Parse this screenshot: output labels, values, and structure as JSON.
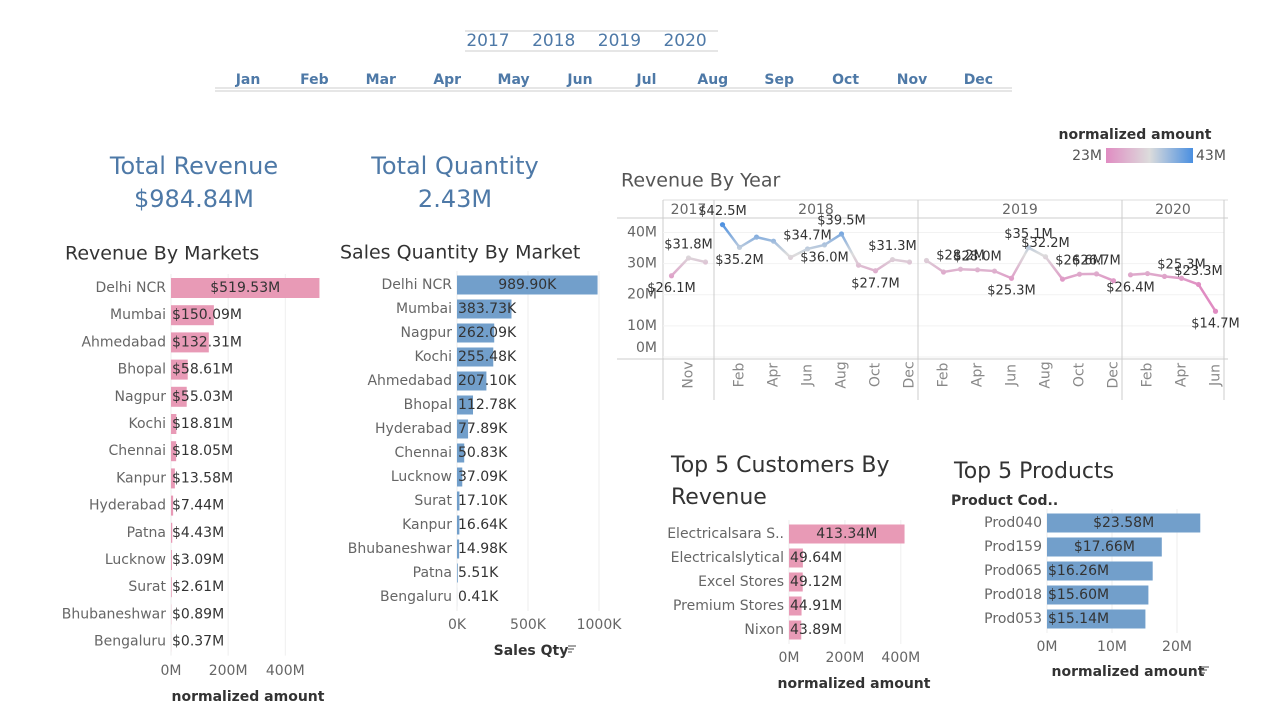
{
  "filters": {
    "years": [
      "2017",
      "2018",
      "2019",
      "2020"
    ],
    "months": [
      "Jan",
      "Feb",
      "Mar",
      "Apr",
      "May",
      "Jun",
      "Jul",
      "Aug",
      "Sep",
      "Oct",
      "Nov",
      "Dec"
    ]
  },
  "kpis": [
    {
      "label": "Total Revenue",
      "value": "$984.84M"
    },
    {
      "label": "Total Quantity",
      "value": "2.43M"
    }
  ],
  "chart_data": [
    {
      "type": "hbar",
      "title": "Revenue By Markets",
      "color": "#e89ab6",
      "categories": [
        "Delhi NCR",
        "Mumbai",
        "Ahmedabad",
        "Bhopal",
        "Nagpur",
        "Kochi",
        "Chennai",
        "Kanpur",
        "Hyderabad",
        "Patna",
        "Lucknow",
        "Surat",
        "Bhubaneshwar",
        "Bengaluru"
      ],
      "values": [
        519.53,
        150.09,
        132.31,
        58.61,
        55.03,
        18.81,
        18.05,
        13.58,
        7.44,
        4.43,
        3.09,
        2.61,
        0.89,
        0.37
      ],
      "value_labels": [
        "$519.53M",
        "$150.09M",
        "$132.31M",
        "$58.61M",
        "$55.03M",
        "$18.81M",
        "$18.05M",
        "$13.58M",
        "$7.44M",
        "$4.43M",
        "$3.09M",
        "$2.61M",
        "$0.89M",
        "$0.37M"
      ],
      "xlim": [
        0,
        560
      ],
      "xticks": [
        {
          "value": 0,
          "label": "0M"
        },
        {
          "value": 200,
          "label": "200M"
        },
        {
          "value": 400,
          "label": "400M"
        }
      ],
      "x_label": "normalized amount"
    },
    {
      "type": "hbar",
      "title": "Sales Quantity By Market",
      "color": "#729fcb",
      "categories": [
        "Delhi NCR",
        "Mumbai",
        "Nagpur",
        "Kochi",
        "Ahmedabad",
        "Bhopal",
        "Hyderabad",
        "Chennai",
        "Lucknow",
        "Surat",
        "Kanpur",
        "Bhubaneshwar",
        "Patna",
        "Bengaluru"
      ],
      "values": [
        989.9,
        383.73,
        262.09,
        255.48,
        207.1,
        112.78,
        77.89,
        50.83,
        37.09,
        17.1,
        16.64,
        14.98,
        5.51,
        0.41
      ],
      "value_labels": [
        "989.90K",
        "383.73K",
        "262.09K",
        "255.48K",
        "207.10K",
        "112.78K",
        "77.89K",
        "50.83K",
        "37.09K",
        "17.10K",
        "16.64K",
        "14.98K",
        "5.51K",
        "0.41K"
      ],
      "xlim": [
        0,
        1000
      ],
      "xticks": [
        {
          "value": 0,
          "label": "0K"
        },
        {
          "value": 500,
          "label": "500K"
        },
        {
          "value": 1000,
          "label": "1000K"
        }
      ],
      "x_label": "Sales Qty"
    },
    {
      "type": "line",
      "title": "Revenue By Year",
      "ylim": [
        0,
        44
      ],
      "yticks": [
        {
          "value": 0,
          "label": "0M"
        },
        {
          "value": 10,
          "label": "10M"
        },
        {
          "value": 20,
          "label": "20M"
        },
        {
          "value": 30,
          "label": "30M"
        },
        {
          "value": 40,
          "label": "40M"
        }
      ],
      "panels": [
        {
          "label": "2017",
          "categories": [
            null,
            "Nov",
            null
          ],
          "values": [
            26.1,
            31.8,
            30.5
          ],
          "value_labels": [
            "$26.1M",
            "$31.8M",
            null
          ]
        },
        {
          "label": "2018",
          "categories": [
            null,
            "Feb",
            null,
            "Apr",
            null,
            "Jun",
            null,
            "Aug",
            null,
            "Oct",
            null,
            "Dec"
          ],
          "values": [
            42.5,
            35.2,
            38.5,
            37.2,
            32.0,
            34.7,
            36.0,
            39.5,
            29.5,
            27.7,
            31.3,
            30.5
          ],
          "value_labels": [
            "$42.5M",
            "$35.2M",
            null,
            null,
            null,
            "$34.7M",
            "$36.0M",
            "$39.5M",
            null,
            "$27.7M",
            "$31.3M",
            null
          ]
        },
        {
          "label": "2019",
          "categories": [
            null,
            "Feb",
            null,
            "Apr",
            null,
            "Jun",
            null,
            "Aug",
            null,
            "Oct",
            null,
            "Dec"
          ],
          "values": [
            31.0,
            27.3,
            28.2,
            28.0,
            27.6,
            25.3,
            35.1,
            32.2,
            25.0,
            26.6,
            26.7,
            24.5
          ],
          "value_labels": [
            null,
            null,
            "$28.2M",
            "$28.0M",
            null,
            "$25.3M",
            "$35.1M",
            "$32.2M",
            null,
            "$26.6M",
            "$26.7M",
            null
          ]
        },
        {
          "label": "2020",
          "categories": [
            null,
            "Feb",
            null,
            "Apr",
            null,
            "Jun"
          ],
          "values": [
            26.4,
            26.8,
            25.9,
            25.3,
            23.3,
            14.7
          ],
          "value_labels": [
            "$26.4M",
            null,
            null,
            "$25.3M",
            "$23.3M",
            "$14.7M"
          ]
        }
      ],
      "color_legend": {
        "title": "normalized amount",
        "min": {
          "value": 23,
          "label": "23M"
        },
        "max": {
          "value": 43,
          "label": "43M"
        },
        "colors": [
          "#e08cc2",
          "#dcdcdc",
          "#4a8fe0"
        ]
      }
    },
    {
      "type": "hbar",
      "title": "Top 5 Customers By Revenue",
      "color": "#e89ab6",
      "categories": [
        "Electricalsara S..",
        "Electricalslytical",
        "Excel Stores",
        "Premium Stores",
        "Nixon"
      ],
      "values": [
        413.34,
        49.64,
        49.12,
        44.91,
        43.89
      ],
      "value_labels": [
        "413.34M",
        "49.64M",
        "49.12M",
        "44.91M",
        "43.89M"
      ],
      "xlim": [
        0,
        440
      ],
      "xticks": [
        {
          "value": 0,
          "label": "0M"
        },
        {
          "value": 200,
          "label": "200M"
        },
        {
          "value": 400,
          "label": "400M"
        }
      ],
      "x_label": "normalized amount"
    },
    {
      "type": "hbar",
      "title": "Top 5 Products",
      "header": "Product Cod..",
      "color": "#729fcb",
      "categories": [
        "Prod040",
        "Prod159",
        "Prod065",
        "Prod018",
        "Prod053"
      ],
      "values": [
        23.58,
        17.66,
        16.26,
        15.6,
        15.14
      ],
      "value_labels": [
        "$23.58M",
        "$17.66M",
        "$16.26M",
        "$15.60M",
        "$15.14M"
      ],
      "xlim": [
        0,
        25
      ],
      "xticks": [
        {
          "value": 0,
          "label": "0M"
        },
        {
          "value": 10,
          "label": "10M"
        },
        {
          "value": 20,
          "label": "20M"
        }
      ],
      "x_label": "normalized amount"
    }
  ]
}
